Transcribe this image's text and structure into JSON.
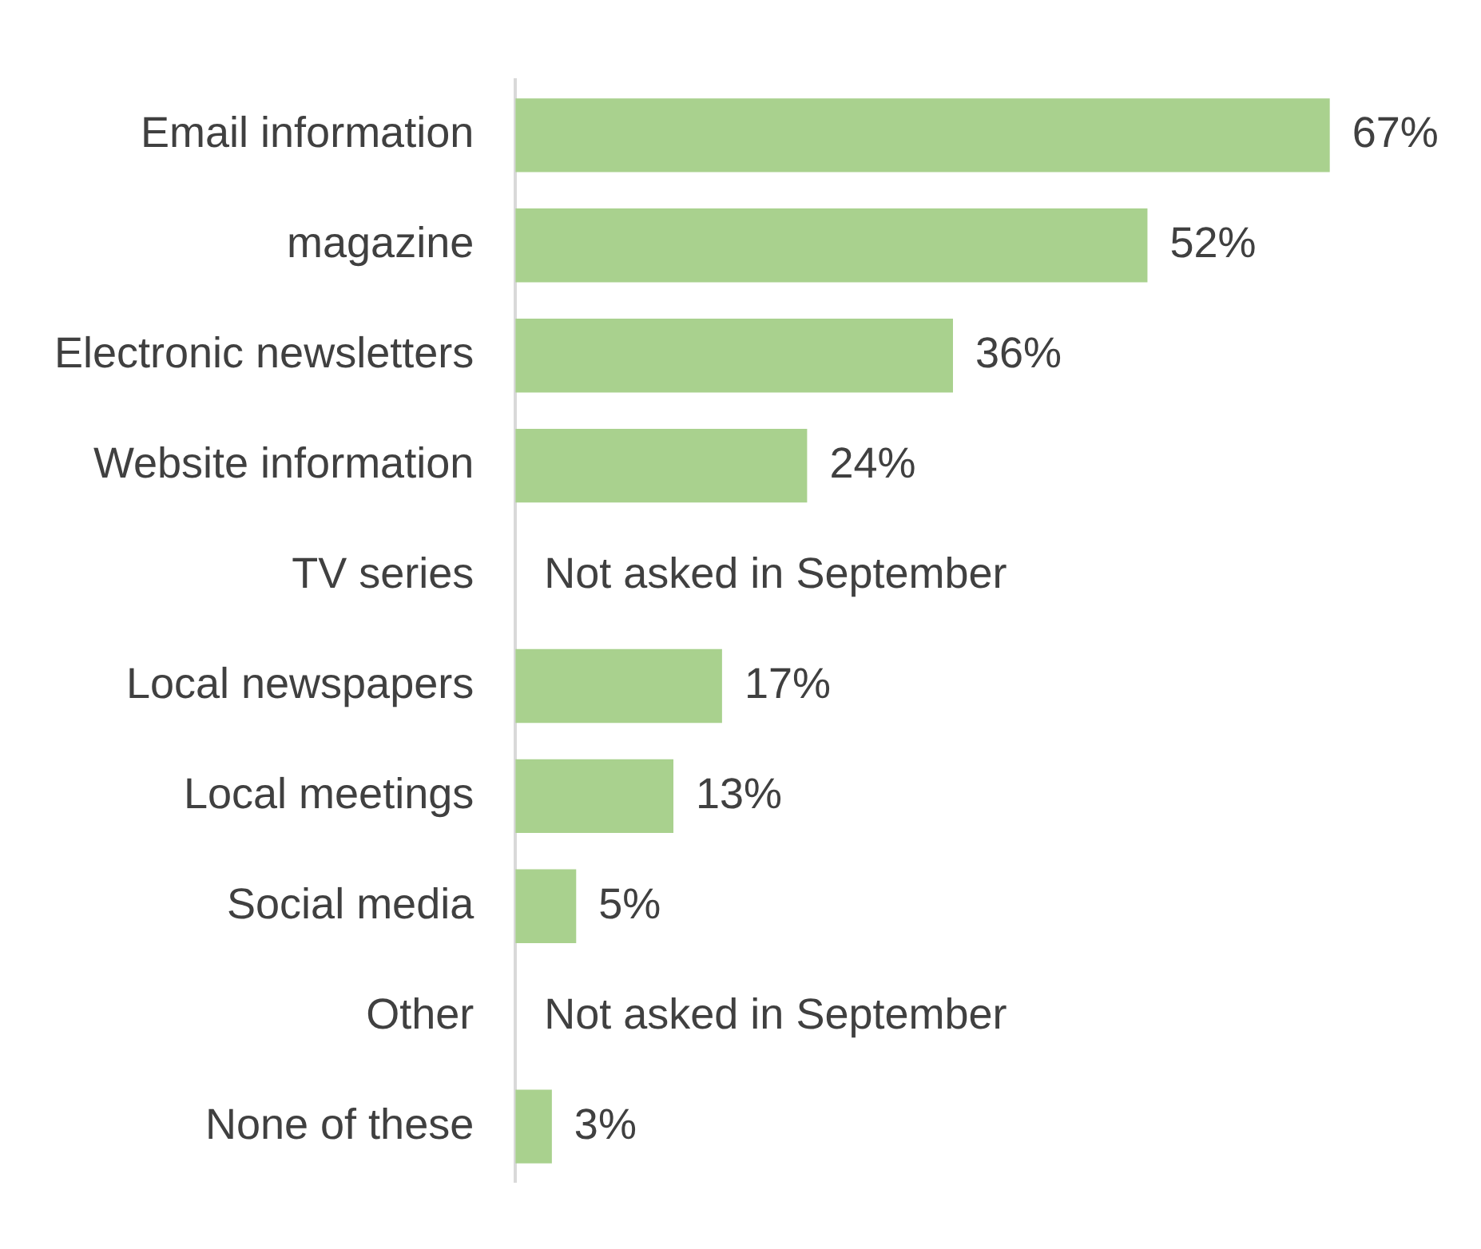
{
  "chart_data": {
    "type": "bar",
    "orientation": "horizontal",
    "categories": [
      "Email information",
      "magazine",
      "Electronic newsletters",
      "Website information",
      "TV series",
      "Local newspapers",
      "Local meetings",
      "Social media",
      "Other",
      "None of these"
    ],
    "values": [
      67,
      52,
      36,
      24,
      null,
      17,
      13,
      5,
      null,
      3
    ],
    "value_labels": [
      "67%",
      "52%",
      "36%",
      "24%",
      "Not asked in September",
      "17%",
      "13%",
      "5%",
      "Not asked in September",
      "3%"
    ],
    "color": "#a9d18e",
    "grid": false,
    "legend": false
  }
}
